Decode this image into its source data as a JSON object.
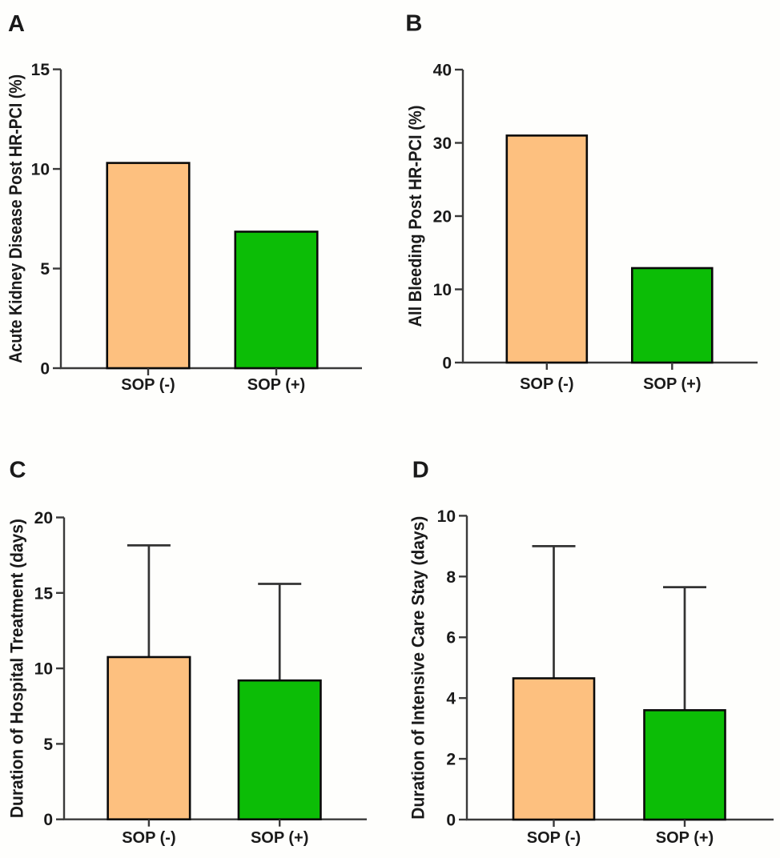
{
  "figure": {
    "description": "Four-panel bar chart figure comparing outcomes for SOP (-) and SOP (+) groups after high-risk PCI",
    "background_color": "#fefefc"
  },
  "colors": {
    "bar_fills": [
      "#fdc07f",
      "#0cbd06"
    ],
    "bar_outline": "#0a0a0a",
    "axis_color": "#3a3a3a",
    "error_bar_color": "#333333",
    "text_color": "#1a1a1a"
  },
  "chart_data": [
    {
      "panel": "A",
      "type": "bar",
      "title": "",
      "xlabel": "",
      "ylabel": "Acute Kidney Disease Post HR-PCI (%)",
      "categories": [
        "SOP (-)",
        "SOP (+)"
      ],
      "values": [
        10.3,
        6.85
      ],
      "errors_plus": [
        0,
        0
      ],
      "ylim": [
        0,
        15
      ],
      "yticks": [
        0,
        5,
        10,
        15
      ],
      "grid": false,
      "legend": "none"
    },
    {
      "panel": "B",
      "type": "bar",
      "title": "",
      "xlabel": "",
      "ylabel": "All Bleeding Post HR-PCI (%)",
      "categories": [
        "SOP (-)",
        "SOP (+)"
      ],
      "values": [
        31,
        12.9
      ],
      "errors_plus": [
        0,
        0
      ],
      "ylim": [
        0,
        40
      ],
      "yticks": [
        0,
        10,
        20,
        30,
        40
      ],
      "grid": false,
      "legend": "none"
    },
    {
      "panel": "C",
      "type": "bar",
      "title": "",
      "xlabel": "",
      "ylabel": "Duration of Hospital Treatment (days)",
      "categories": [
        "SOP (-)",
        "SOP (+)"
      ],
      "values": [
        10.75,
        9.2
      ],
      "errors_plus": [
        7.4,
        6.4
      ],
      "ylim": [
        0,
        20
      ],
      "yticks": [
        0,
        5,
        10,
        15,
        20
      ],
      "grid": false,
      "legend": "none"
    },
    {
      "panel": "D",
      "type": "bar",
      "title": "",
      "xlabel": "",
      "ylabel": "Duration of Intensive Care Stay (days)",
      "categories": [
        "SOP (-)",
        "SOP (+)"
      ],
      "values": [
        4.65,
        3.6
      ],
      "errors_plus": [
        4.35,
        4.05
      ],
      "ylim": [
        0,
        10
      ],
      "yticks": [
        0,
        2,
        4,
        6,
        8,
        10
      ],
      "grid": false,
      "legend": "none"
    }
  ]
}
